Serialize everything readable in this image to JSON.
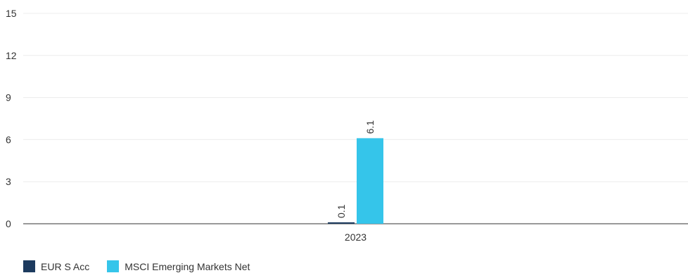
{
  "chart_data": {
    "type": "bar",
    "categories": [
      "2023"
    ],
    "series": [
      {
        "name": "EUR S Acc",
        "values": [
          0.1
        ],
        "labels": [
          "0.1"
        ],
        "color": "#1c3a5e"
      },
      {
        "name": "MSCI Emerging Markets Net",
        "values": [
          6.1
        ],
        "labels": [
          "6.1"
        ],
        "color": "#35c5ea"
      }
    ],
    "ylim": [
      0,
      15
    ],
    "yticks": [
      "0",
      "3",
      "6",
      "9",
      "12",
      "15"
    ],
    "grid": true,
    "legend_position": "bottom-left",
    "title": "",
    "xlabel": "",
    "ylabel": ""
  }
}
